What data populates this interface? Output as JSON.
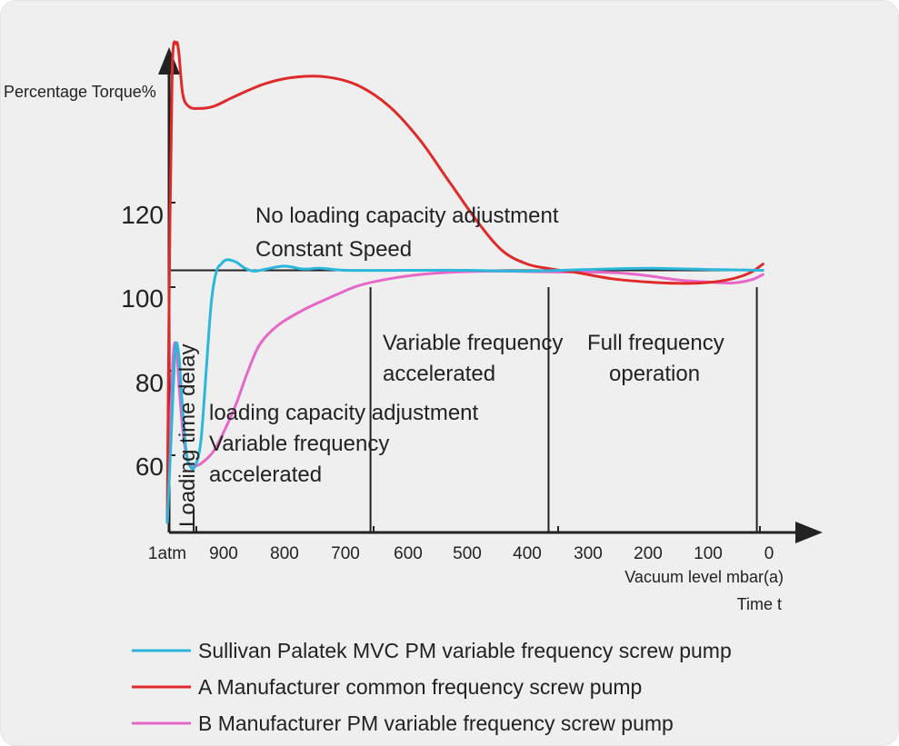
{
  "chart_data": {
    "type": "line",
    "y_axis_title": "Percentage Torque%",
    "x_axis_title": "Vacuum level mbar(a)",
    "x_axis_subtitle": "Time t",
    "y_ticks": [
      "120",
      "100",
      "80",
      "60"
    ],
    "y_tick_values": [
      120,
      100,
      80,
      60
    ],
    "x_ticks": [
      "1atm",
      "900",
      "800",
      "700",
      "600",
      "500",
      "400",
      "300",
      "200",
      "100",
      "0"
    ],
    "x_tick_values": [
      1013,
      900,
      800,
      700,
      600,
      500,
      400,
      300,
      200,
      100,
      0
    ],
    "reference_line": 104,
    "region_dividers": [
      960,
      660,
      365,
      20
    ],
    "annotations": {
      "no_loading_1": "No loading capacity adjustment",
      "no_loading_2": "Constant Speed",
      "loading_delay": "Loading time delay",
      "lca_1": "loading capacity adjustment",
      "lca_2": "Variable frequency",
      "lca_3": "accelerated",
      "vfa_1": "Variable frequency",
      "vfa_2": "accelerated",
      "ffo_1": "Full frequency",
      "ffo_2": "operation"
    },
    "series": [
      {
        "name": "Sullivan Palatek MVC PM variable frequency screw pump",
        "color": "#2bb6dc",
        "points": [
          [
            1013,
            44
          ],
          [
            1006,
            62
          ],
          [
            997,
            85
          ],
          [
            990,
            84
          ],
          [
            984,
            74
          ],
          [
            975,
            61
          ],
          [
            965,
            57
          ],
          [
            955,
            58
          ],
          [
            945,
            64
          ],
          [
            935,
            80
          ],
          [
            925,
            96
          ],
          [
            915,
            103.5
          ],
          [
            905,
            105.5
          ],
          [
            895,
            106.5
          ],
          [
            880,
            106
          ],
          [
            865,
            104.5
          ],
          [
            850,
            103.8
          ],
          [
            830,
            104.3
          ],
          [
            800,
            105
          ],
          [
            770,
            104.3
          ],
          [
            740,
            104.5
          ],
          [
            700,
            104
          ],
          [
            600,
            104
          ],
          [
            500,
            104
          ],
          [
            400,
            103.8
          ],
          [
            300,
            104.2
          ],
          [
            200,
            104.5
          ],
          [
            100,
            104.2
          ],
          [
            10,
            104
          ]
        ]
      },
      {
        "name": "A Manufacturer common frequency screw pump",
        "color": "#e02a2a",
        "points": [
          [
            1013,
            44
          ],
          [
            1009,
            100
          ],
          [
            1003,
            152
          ],
          [
            995,
            158
          ],
          [
            990,
            156
          ],
          [
            982,
            146
          ],
          [
            970,
            143
          ],
          [
            950,
            142.5
          ],
          [
            920,
            143
          ],
          [
            880,
            145.5
          ],
          [
            830,
            148.5
          ],
          [
            780,
            150
          ],
          [
            730,
            150
          ],
          [
            680,
            148
          ],
          [
            630,
            143
          ],
          [
            580,
            135
          ],
          [
            530,
            125
          ],
          [
            480,
            115
          ],
          [
            440,
            108.5
          ],
          [
            400,
            105.5
          ],
          [
            360,
            104.3
          ],
          [
            320,
            103.5
          ],
          [
            260,
            102
          ],
          [
            200,
            101.2
          ],
          [
            150,
            100.9
          ],
          [
            100,
            101.1
          ],
          [
            60,
            102
          ],
          [
            30,
            103.5
          ],
          [
            10,
            105.5
          ]
        ]
      },
      {
        "name": "B Manufacturer PM variable frequency screw pump",
        "color": "#e667c8",
        "points": [
          [
            1013,
            44
          ],
          [
            1007,
            66
          ],
          [
            1001,
            84
          ],
          [
            995,
            86
          ],
          [
            989,
            76
          ],
          [
            980,
            64
          ],
          [
            970,
            58
          ],
          [
            955,
            57.5
          ],
          [
            940,
            58.5
          ],
          [
            920,
            61
          ],
          [
            900,
            65.5
          ],
          [
            880,
            72
          ],
          [
            860,
            80
          ],
          [
            840,
            86.5
          ],
          [
            810,
            91
          ],
          [
            770,
            94.5
          ],
          [
            730,
            97.2
          ],
          [
            680,
            100.3
          ],
          [
            630,
            102
          ],
          [
            580,
            103
          ],
          [
            520,
            103.6
          ],
          [
            450,
            103.8
          ],
          [
            400,
            103.7
          ],
          [
            350,
            103.6
          ],
          [
            300,
            103.6
          ],
          [
            250,
            103.4
          ],
          [
            200,
            102.7
          ],
          [
            150,
            101.7
          ],
          [
            100,
            101.2
          ],
          [
            60,
            101
          ],
          [
            30,
            101.7
          ],
          [
            10,
            103
          ]
        ]
      }
    ],
    "legend": [
      "Sullivan Palatek MVC PM variable frequency screw pump",
      "A Manufacturer common frequency screw pump",
      "B Manufacturer PM variable frequency screw pump"
    ],
    "legend_position": "bottom",
    "grid": false
  }
}
